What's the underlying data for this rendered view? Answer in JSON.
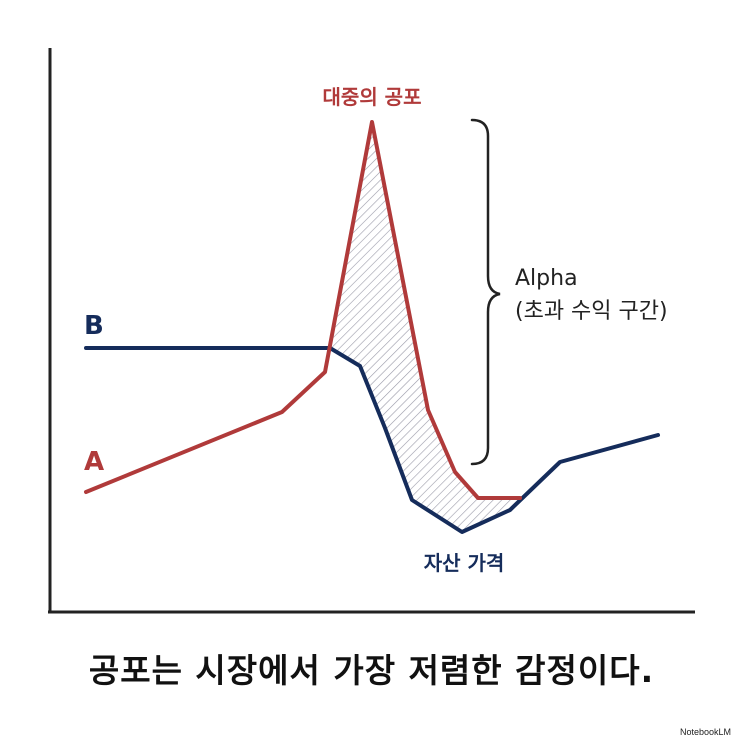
{
  "labels": {
    "peak": "대중의 공포",
    "line_b": "B",
    "line_a": "A",
    "trough": "자산 가격",
    "alpha_line1": "Alpha",
    "alpha_line2": "(초과 수익 구간)"
  },
  "caption": "공포는 시장에서 가장 저렴한 감정이다.",
  "watermark": "NotebookLM",
  "colors": {
    "red_line": "#B03A3A",
    "blue_line": "#152C5B",
    "axis": "#222222",
    "text": "#111111"
  }
}
